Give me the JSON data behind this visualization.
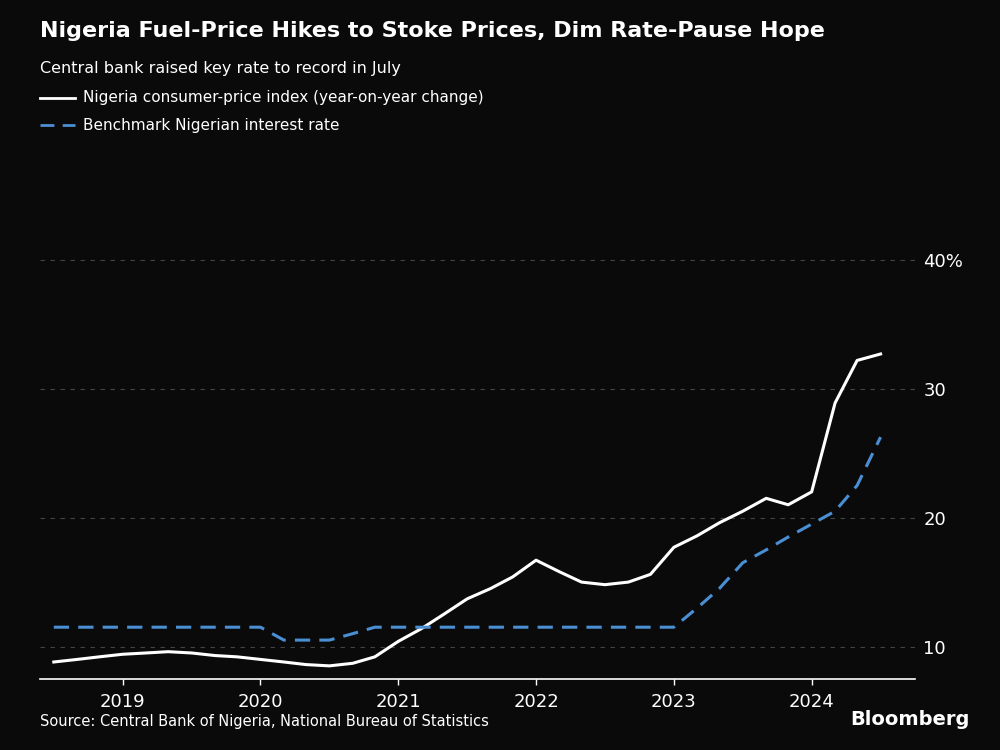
{
  "title": "Nigeria Fuel-Price Hikes to Stoke Prices, Dim Rate-Pause Hope",
  "subtitle": "Central bank raised key rate to record in July",
  "legend_cpi": "Nigeria consumer-price index (year-on-year change)",
  "legend_rate": "Benchmark Nigerian interest rate",
  "source": "Source: Central Bank of Nigeria, National Bureau of Statistics",
  "bloomberg": "Bloomberg",
  "background_color": "#0a0a0a",
  "fig_background_color": "#d0d0d0",
  "text_color": "#ffffff",
  "cpi_color": "#ffffff",
  "rate_color": "#4a8fd4",
  "yticks": [
    10,
    20,
    30,
    40
  ],
  "ylim": [
    7.5,
    43
  ],
  "cpi_x": [
    2018.5,
    2018.67,
    2018.83,
    2019.0,
    2019.17,
    2019.33,
    2019.5,
    2019.67,
    2019.83,
    2020.0,
    2020.17,
    2020.33,
    2020.5,
    2020.67,
    2020.83,
    2021.0,
    2021.17,
    2021.33,
    2021.5,
    2021.67,
    2021.83,
    2022.0,
    2022.17,
    2022.33,
    2022.5,
    2022.67,
    2022.83,
    2023.0,
    2023.17,
    2023.33,
    2023.5,
    2023.67,
    2023.83,
    2024.0,
    2024.17,
    2024.33,
    2024.5
  ],
  "cpi_y": [
    8.8,
    9.0,
    9.2,
    9.4,
    9.5,
    9.6,
    9.5,
    9.3,
    9.2,
    9.0,
    8.8,
    8.6,
    8.5,
    8.7,
    9.2,
    10.4,
    11.4,
    12.5,
    13.7,
    14.5,
    15.4,
    16.7,
    15.8,
    15.0,
    14.8,
    15.0,
    15.6,
    17.7,
    18.6,
    19.6,
    20.5,
    21.5,
    21.0,
    22.0,
    28.9,
    32.2,
    32.7
  ],
  "rate_x": [
    2018.5,
    2018.67,
    2018.83,
    2019.0,
    2019.17,
    2019.33,
    2019.5,
    2019.67,
    2019.83,
    2020.0,
    2020.17,
    2020.33,
    2020.5,
    2020.67,
    2020.83,
    2021.0,
    2021.17,
    2021.33,
    2021.5,
    2021.67,
    2021.83,
    2022.0,
    2022.17,
    2022.33,
    2022.5,
    2022.67,
    2022.83,
    2023.0,
    2023.17,
    2023.33,
    2023.5,
    2023.67,
    2023.83,
    2024.0,
    2024.17,
    2024.33,
    2024.5
  ],
  "rate_y": [
    11.5,
    11.5,
    11.5,
    11.5,
    11.5,
    11.5,
    11.5,
    11.5,
    11.5,
    11.5,
    10.5,
    10.5,
    10.5,
    11.0,
    11.5,
    11.5,
    11.5,
    11.5,
    11.5,
    11.5,
    11.5,
    11.5,
    11.5,
    11.5,
    11.5,
    11.5,
    11.5,
    11.5,
    13.0,
    14.5,
    16.5,
    17.5,
    18.5,
    19.5,
    20.5,
    22.5,
    26.25
  ],
  "xlim": [
    2018.4,
    2024.75
  ],
  "xtick_positions": [
    2019.0,
    2020.0,
    2021.0,
    2022.0,
    2023.0,
    2024.0
  ],
  "xtick_labels": [
    "2019",
    "2020",
    "2021",
    "2022",
    "2023",
    "2024"
  ]
}
